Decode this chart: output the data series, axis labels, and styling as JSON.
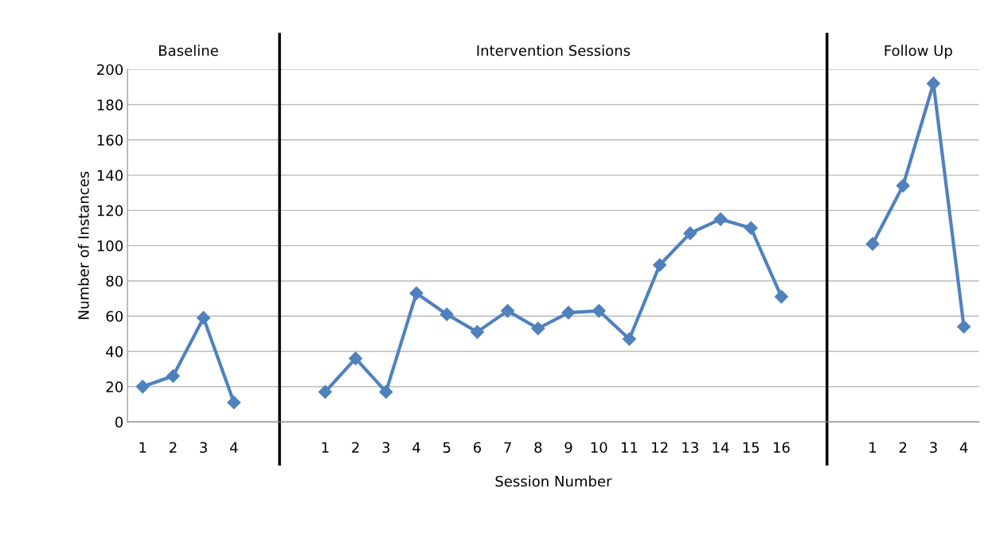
{
  "chart_data": {
    "type": "line",
    "xlabel": "Session Number",
    "ylabel": "Number of Instances",
    "categories": [
      "1",
      "2",
      "3",
      "4",
      null,
      null,
      "1",
      "2",
      "3",
      "4",
      "5",
      "6",
      "7",
      "8",
      "9",
      "10",
      "11",
      "12",
      "13",
      "14",
      "15",
      "16",
      null,
      null,
      "1",
      "2",
      "3",
      "4"
    ],
    "series": [
      {
        "color": "#4f81bd",
        "values": [
          20,
          26,
          59,
          11,
          null,
          null,
          17,
          36,
          17,
          73,
          61,
          51,
          63,
          53,
          62,
          63,
          47,
          89,
          107,
          115,
          110,
          71,
          null,
          null,
          101,
          134,
          192,
          54
        ]
      }
    ],
    "ylim": [
      0,
      200
    ],
    "yticks": [
      0,
      20,
      40,
      60,
      80,
      100,
      120,
      140,
      160,
      180,
      200
    ],
    "grid": "y",
    "marker": "diamond",
    "line_style": "solid",
    "annotations": [
      "Baseline",
      "Intervention Sessions",
      "Follow Up"
    ]
  }
}
